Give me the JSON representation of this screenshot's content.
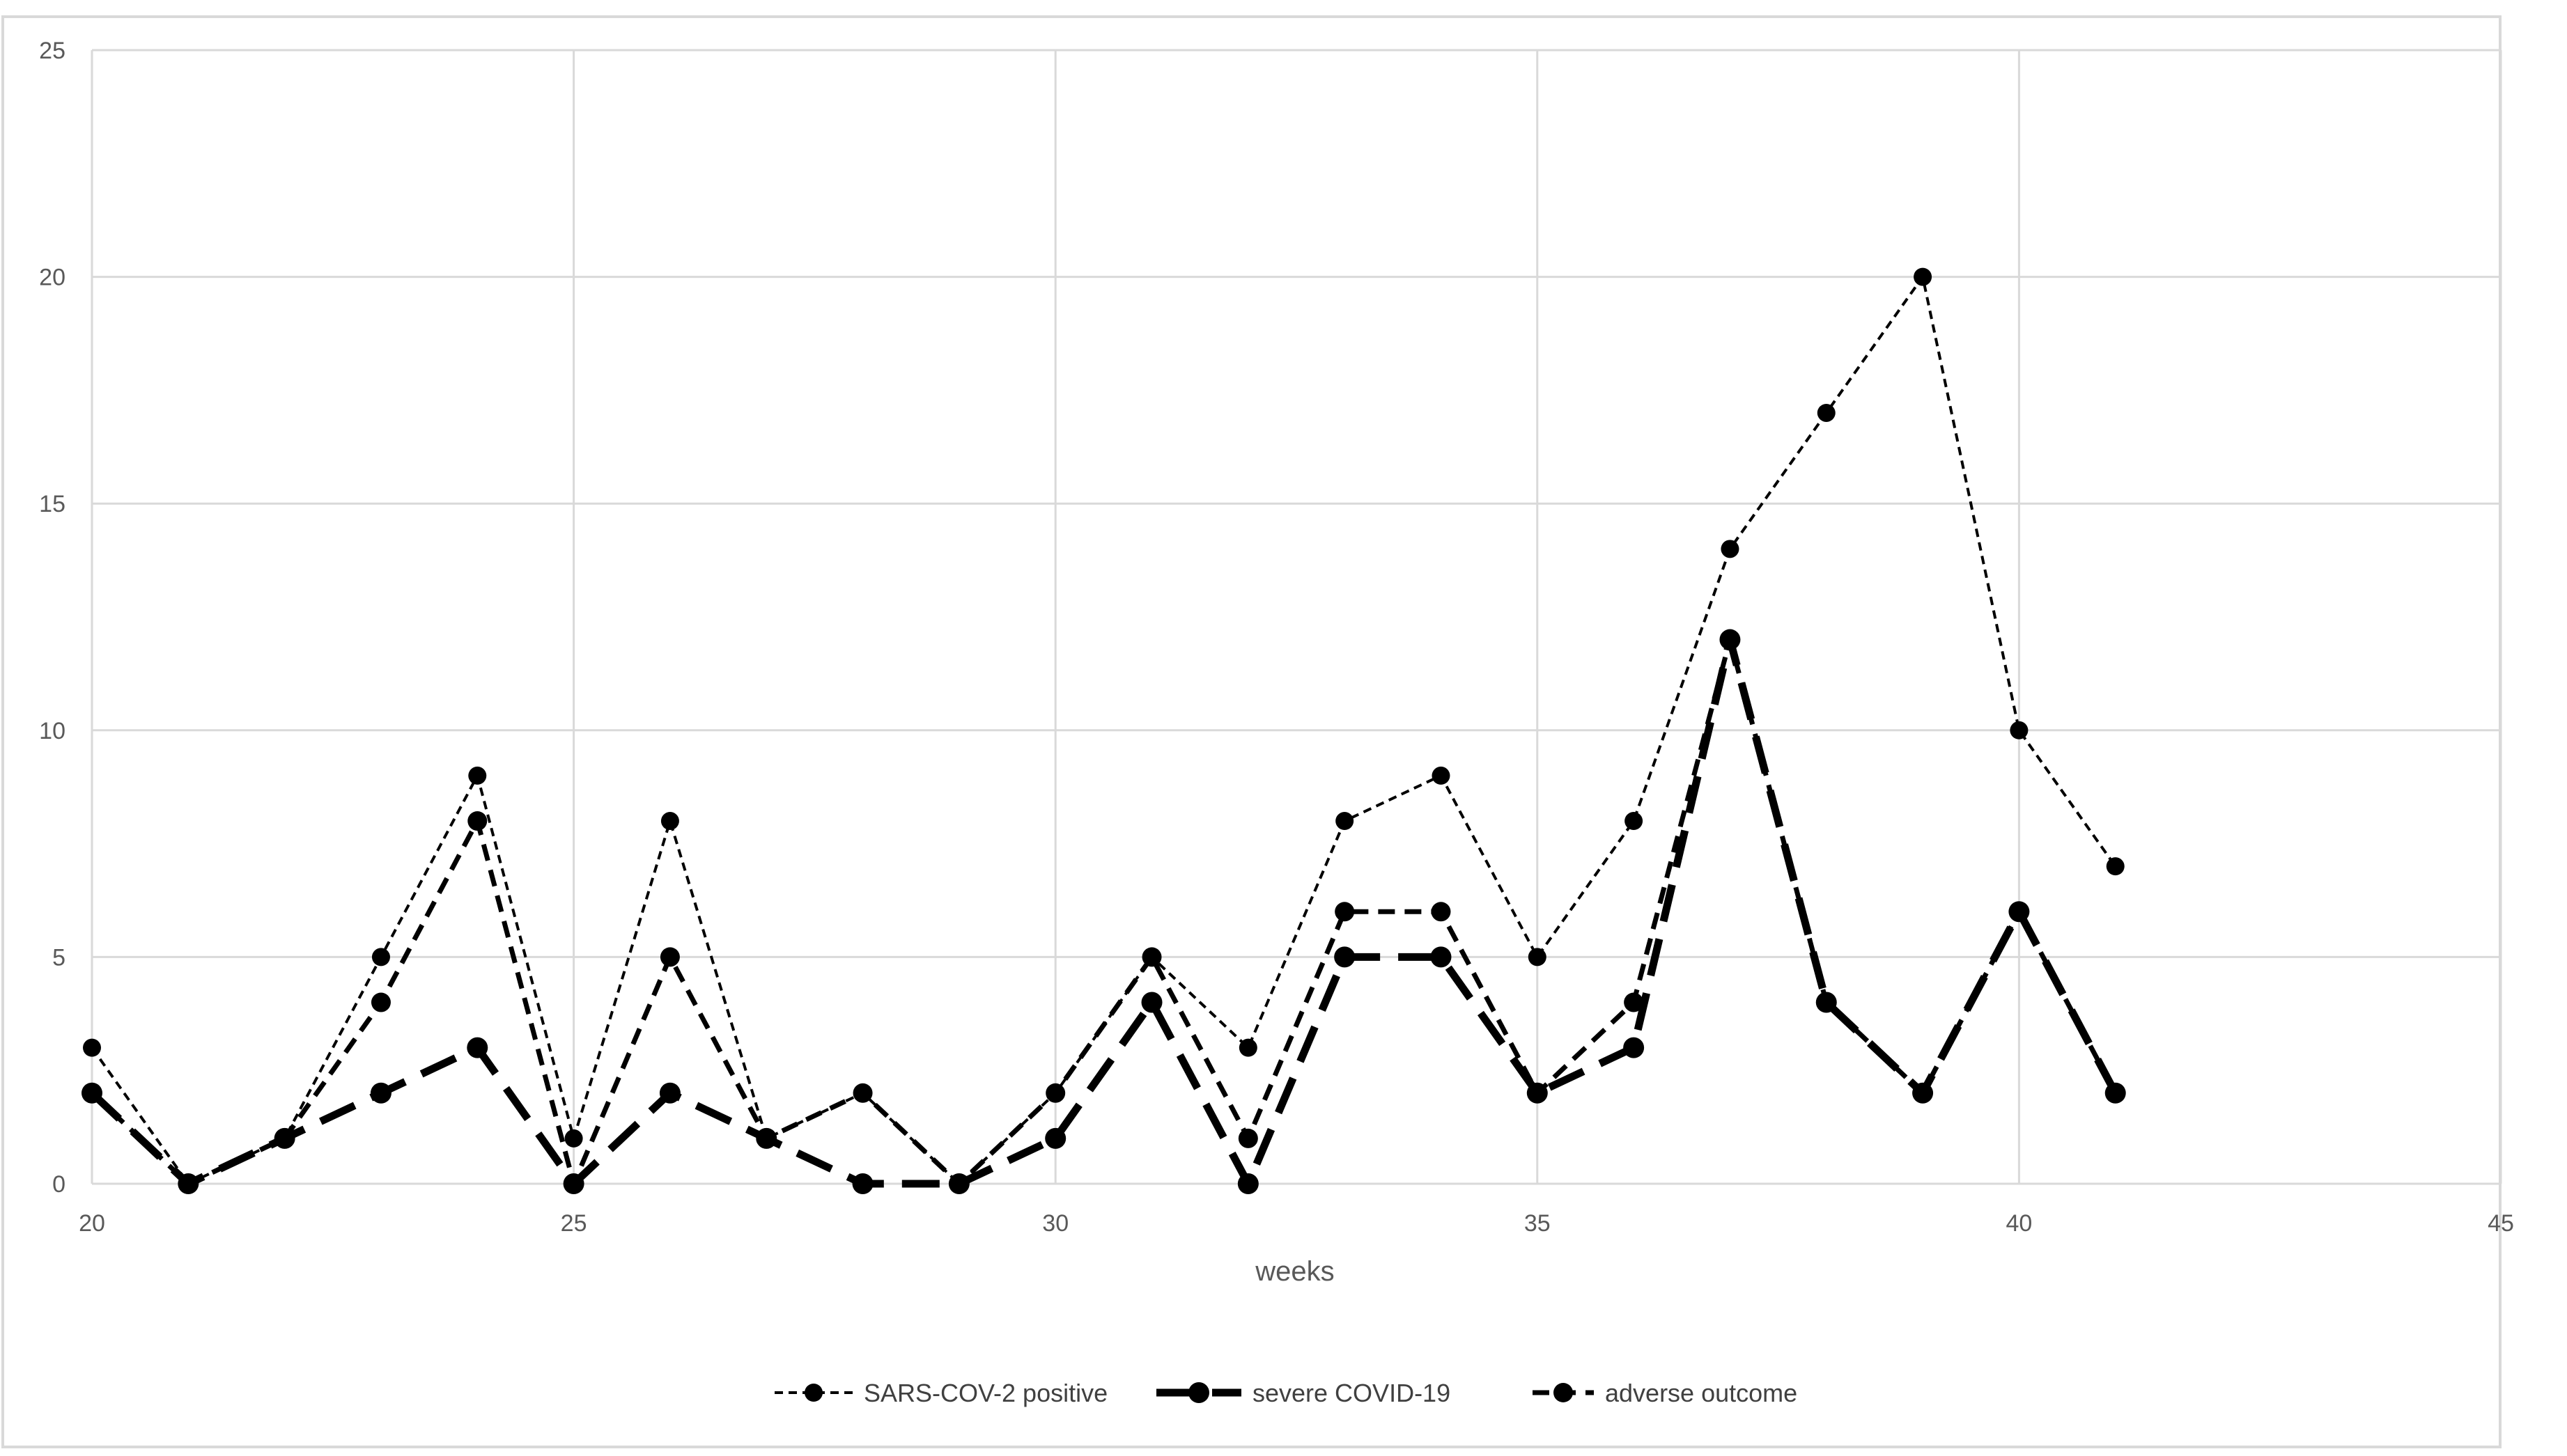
{
  "chart_data": {
    "type": "line",
    "title": "",
    "xlabel": "weeks",
    "ylabel": "",
    "xlim": [
      20,
      45
    ],
    "ylim": [
      0,
      25
    ],
    "x_ticks": [
      20,
      25,
      30,
      35,
      40,
      45
    ],
    "y_ticks": [
      0,
      5,
      10,
      15,
      20,
      25
    ],
    "grid": true,
    "legend_position": "bottom",
    "x": [
      20,
      21,
      22,
      23,
      24,
      25,
      26,
      27,
      28,
      29,
      30,
      31,
      32,
      33,
      34,
      35,
      36,
      37,
      38,
      39,
      40,
      41
    ],
    "series": [
      {
        "name": "SARS-COV-2 positive",
        "color": "#000000",
        "line_style": "dotted-dash-thin",
        "values": [
          3,
          0,
          1,
          5,
          9,
          1,
          8,
          1,
          2,
          0,
          2,
          5,
          3,
          8,
          9,
          5,
          8,
          14,
          17,
          20,
          10,
          7
        ]
      },
      {
        "name": "severe COVID-19",
        "color": "#000000",
        "line_style": "long-dash-thick",
        "values": [
          2,
          0,
          1,
          2,
          3,
          0,
          2,
          1,
          0,
          0,
          1,
          4,
          0,
          5,
          5,
          2,
          3,
          12,
          4,
          2,
          6,
          2
        ]
      },
      {
        "name": "adverse outcome",
        "color": "#000000",
        "line_style": "dash-medium",
        "values": [
          2,
          0,
          1,
          4,
          8,
          0,
          5,
          1,
          2,
          0,
          2,
          5,
          1,
          6,
          6,
          2,
          4,
          12,
          4,
          2,
          6,
          2
        ]
      }
    ]
  }
}
